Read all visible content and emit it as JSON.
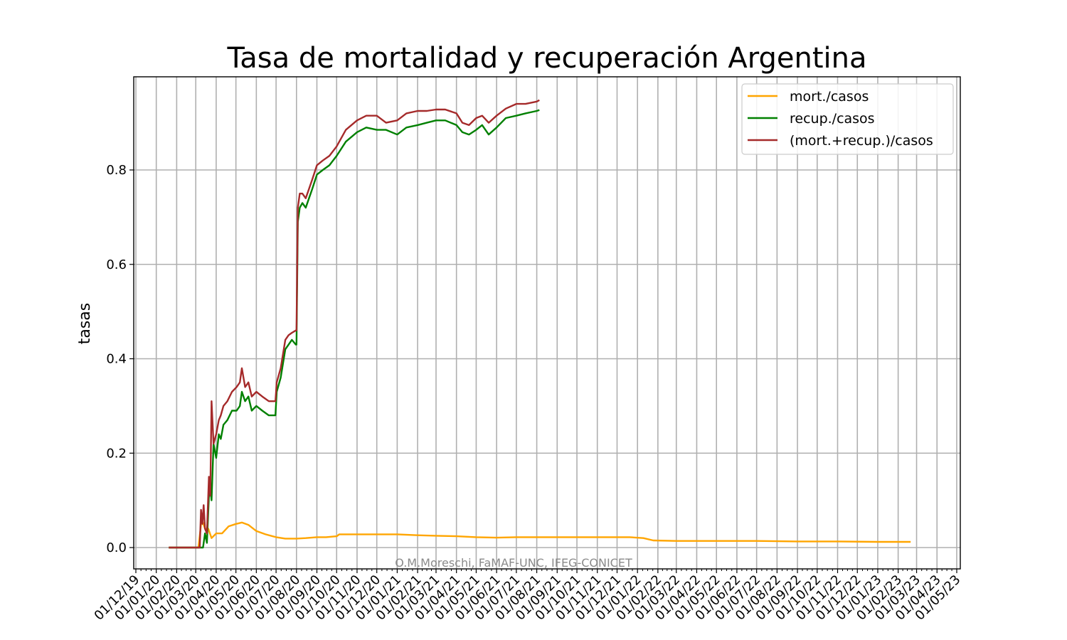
{
  "chart_data": {
    "type": "line",
    "title": "Tasa de mortalidad y recuperación Argentina",
    "xlabel": "",
    "ylabel": "tasas",
    "yticks": [
      "0.0",
      "0.2",
      "0.4",
      "0.6",
      "0.8"
    ],
    "ylim": [
      -0.05,
      1.0
    ],
    "xticks": [
      "01/12/19",
      "01/01/20",
      "01/02/20",
      "01/03/20",
      "01/04/20",
      "01/05/20",
      "01/06/20",
      "01/07/20",
      "01/08/20",
      "01/09/20",
      "01/10/20",
      "01/11/20",
      "01/12/20",
      "01/01/21",
      "01/02/21",
      "01/03/21",
      "01/04/21",
      "01/05/21",
      "01/06/21",
      "01/07/21",
      "01/08/21",
      "01/09/21",
      "01/10/21",
      "01/11/21",
      "01/12/21",
      "01/01/22",
      "01/02/22",
      "01/03/22",
      "01/04/22",
      "01/05/22",
      "01/06/22",
      "01/07/22",
      "01/08/22",
      "01/09/22",
      "01/10/22",
      "01/11/22",
      "01/12/22",
      "01/01/23",
      "01/02/23",
      "01/03/23",
      "01/04/23",
      "01/05/23"
    ],
    "grid": true,
    "legend_position": "top-right",
    "annotation": "O.M.Moreschi, FaMAF-UNC, IFEG-CONICET",
    "series": [
      {
        "name": "mort./casos",
        "color": "#ffa500",
        "x": [
          "2020-01-20",
          "2020-02-15",
          "2020-03-05",
          "2020-03-10",
          "2020-03-15",
          "2020-03-20",
          "2020-03-25",
          "2020-04-01",
          "2020-04-10",
          "2020-04-20",
          "2020-05-01",
          "2020-05-10",
          "2020-05-20",
          "2020-06-01",
          "2020-06-15",
          "2020-07-01",
          "2020-07-15",
          "2020-08-01",
          "2020-08-15",
          "2020-09-01",
          "2020-09-15",
          "2020-10-01",
          "2020-10-05",
          "2020-11-01",
          "2020-12-01",
          "2021-01-01",
          "2021-02-01",
          "2021-03-01",
          "2021-04-01",
          "2021-05-01",
          "2021-06-01",
          "2021-07-01",
          "2021-08-01",
          "2021-09-01",
          "2021-10-01",
          "2021-11-01",
          "2021-12-01",
          "2021-12-20",
          "2022-01-10",
          "2022-01-25",
          "2022-03-01",
          "2022-05-01",
          "2022-07-01",
          "2022-09-01",
          "2022-11-01",
          "2023-01-01",
          "2023-02-20"
        ],
        "y": [
          0.0,
          0.0,
          0.0,
          0.06,
          0.04,
          0.04,
          0.02,
          0.03,
          0.03,
          0.045,
          0.05,
          0.053,
          0.048,
          0.035,
          0.028,
          0.022,
          0.019,
          0.019,
          0.02,
          0.022,
          0.022,
          0.024,
          0.028,
          0.028,
          0.028,
          0.028,
          0.026,
          0.025,
          0.024,
          0.022,
          0.021,
          0.022,
          0.022,
          0.022,
          0.022,
          0.022,
          0.022,
          0.022,
          0.02,
          0.015,
          0.014,
          0.014,
          0.014,
          0.013,
          0.013,
          0.012,
          0.012
        ]
      },
      {
        "name": "recup./casos",
        "color": "#008000",
        "x": [
          "2020-01-20",
          "2020-03-07",
          "2020-03-12",
          "2020-03-15",
          "2020-03-18",
          "2020-03-22",
          "2020-03-25",
          "2020-03-28",
          "2020-04-01",
          "2020-04-05",
          "2020-04-08",
          "2020-04-12",
          "2020-04-18",
          "2020-04-25",
          "2020-05-02",
          "2020-05-07",
          "2020-05-10",
          "2020-05-15",
          "2020-05-20",
          "2020-05-25",
          "2020-06-01",
          "2020-06-10",
          "2020-06-20",
          "2020-06-30",
          "2020-07-02",
          "2020-07-08",
          "2020-07-15",
          "2020-07-20",
          "2020-07-25",
          "2020-07-31",
          "2020-08-01",
          "2020-08-03",
          "2020-08-06",
          "2020-08-10",
          "2020-08-15",
          "2020-08-20",
          "2020-08-25",
          "2020-09-01",
          "2020-09-10",
          "2020-09-20",
          "2020-10-01",
          "2020-10-15",
          "2020-11-01",
          "2020-11-15",
          "2020-12-01",
          "2020-12-15",
          "2021-01-01",
          "2021-01-15",
          "2021-02-01",
          "2021-02-15",
          "2021-03-01",
          "2021-03-15",
          "2021-04-01",
          "2021-04-10",
          "2021-04-20",
          "2021-05-01",
          "2021-05-10",
          "2021-05-20",
          "2021-06-01",
          "2021-06-15",
          "2021-07-01",
          "2021-07-15",
          "2021-08-01",
          "2021-08-05"
        ],
        "y": [
          0.0,
          0.0,
          0.0,
          0.03,
          0.01,
          0.14,
          0.1,
          0.22,
          0.19,
          0.24,
          0.23,
          0.26,
          0.27,
          0.29,
          0.29,
          0.3,
          0.33,
          0.31,
          0.32,
          0.29,
          0.3,
          0.29,
          0.28,
          0.28,
          0.33,
          0.36,
          0.42,
          0.43,
          0.44,
          0.43,
          0.43,
          0.69,
          0.72,
          0.73,
          0.72,
          0.74,
          0.76,
          0.79,
          0.8,
          0.81,
          0.83,
          0.86,
          0.88,
          0.89,
          0.885,
          0.885,
          0.875,
          0.89,
          0.895,
          0.9,
          0.905,
          0.905,
          0.895,
          0.88,
          0.875,
          0.885,
          0.895,
          0.875,
          0.89,
          0.91,
          0.915,
          0.92,
          0.925,
          0.927
        ]
      },
      {
        "name": "(mort.+recup.)/casos",
        "color": "#a52a2a",
        "x": [
          "2020-01-20",
          "2020-03-07",
          "2020-03-09",
          "2020-03-11",
          "2020-03-13",
          "2020-03-15",
          "2020-03-18",
          "2020-03-21",
          "2020-03-23",
          "2020-03-25",
          "2020-03-28",
          "2020-04-01",
          "2020-04-05",
          "2020-04-08",
          "2020-04-12",
          "2020-04-18",
          "2020-04-25",
          "2020-05-02",
          "2020-05-07",
          "2020-05-10",
          "2020-05-15",
          "2020-05-20",
          "2020-05-25",
          "2020-06-01",
          "2020-06-10",
          "2020-06-20",
          "2020-06-30",
          "2020-07-02",
          "2020-07-08",
          "2020-07-15",
          "2020-07-20",
          "2020-07-25",
          "2020-07-31",
          "2020-08-01",
          "2020-08-03",
          "2020-08-06",
          "2020-08-10",
          "2020-08-15",
          "2020-08-20",
          "2020-08-25",
          "2020-09-01",
          "2020-09-10",
          "2020-09-20",
          "2020-10-01",
          "2020-10-15",
          "2020-11-01",
          "2020-11-15",
          "2020-12-01",
          "2020-12-15",
          "2021-01-01",
          "2021-01-15",
          "2021-02-01",
          "2021-02-15",
          "2021-03-01",
          "2021-03-15",
          "2021-04-01",
          "2021-04-10",
          "2021-04-20",
          "2021-05-01",
          "2021-05-10",
          "2021-05-20",
          "2021-06-01",
          "2021-06-15",
          "2021-07-01",
          "2021-07-15",
          "2021-08-01",
          "2021-08-05"
        ],
        "y": [
          0.0,
          0.0,
          0.08,
          0.05,
          0.09,
          0.04,
          0.03,
          0.15,
          0.11,
          0.31,
          0.22,
          0.24,
          0.27,
          0.28,
          0.3,
          0.31,
          0.33,
          0.34,
          0.35,
          0.38,
          0.34,
          0.35,
          0.32,
          0.33,
          0.32,
          0.31,
          0.31,
          0.35,
          0.38,
          0.44,
          0.45,
          0.455,
          0.46,
          0.46,
          0.72,
          0.75,
          0.75,
          0.74,
          0.76,
          0.78,
          0.81,
          0.82,
          0.83,
          0.85,
          0.885,
          0.905,
          0.915,
          0.915,
          0.9,
          0.905,
          0.92,
          0.925,
          0.925,
          0.928,
          0.928,
          0.92,
          0.9,
          0.895,
          0.91,
          0.915,
          0.9,
          0.915,
          0.93,
          0.94,
          0.94,
          0.945,
          0.948
        ]
      }
    ]
  }
}
